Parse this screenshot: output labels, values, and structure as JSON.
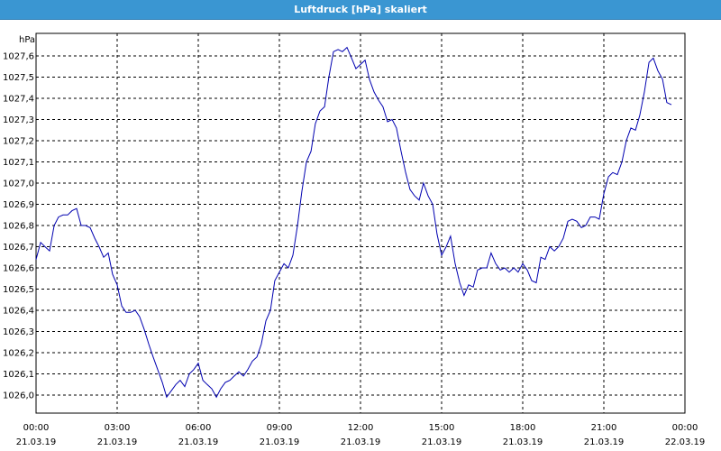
{
  "window": {
    "title": "Luftdruck [hPa] skaliert"
  },
  "colors": {
    "title_bar": "#3a96d2",
    "line": "#0000b0",
    "grid": "#000000"
  },
  "chart_data": {
    "type": "line",
    "title": "Luftdruck [hPa] skaliert",
    "ylabel": "hPa",
    "xlabel": "",
    "grid": true,
    "ylim": [
      1025.9,
      1027.7
    ],
    "xlim": [
      0,
      24
    ],
    "y_ticks": [
      "1026,0",
      "1026,1",
      "1026,2",
      "1026,3",
      "1026,4",
      "1026,5",
      "1026,6",
      "1026,7",
      "1026,8",
      "1026,9",
      "1027,0",
      "1027,1",
      "1027,2",
      "1027,3",
      "1027,4",
      "1027,5",
      "1027,6"
    ],
    "x_ticks": [
      {
        "time": "00:00",
        "date": "21.03.19"
      },
      {
        "time": "03:00",
        "date": "21.03.19"
      },
      {
        "time": "06:00",
        "date": "21.03.19"
      },
      {
        "time": "09:00",
        "date": "21.03.19"
      },
      {
        "time": "12:00",
        "date": "21.03.19"
      },
      {
        "time": "15:00",
        "date": "21.03.19"
      },
      {
        "time": "18:00",
        "date": "21.03.19"
      },
      {
        "time": "21:00",
        "date": "21.03.19"
      },
      {
        "time": "00:00",
        "date": "22.03.19"
      }
    ],
    "series": [
      {
        "values": [
          [
            0.0,
            1026.64
          ],
          [
            0.17,
            1026.72
          ],
          [
            0.33,
            1026.7
          ],
          [
            0.5,
            1026.68
          ],
          [
            0.67,
            1026.8
          ],
          [
            0.83,
            1026.84
          ],
          [
            1.0,
            1026.85
          ],
          [
            1.17,
            1026.85
          ],
          [
            1.33,
            1026.87
          ],
          [
            1.5,
            1026.88
          ],
          [
            1.67,
            1026.8
          ],
          [
            1.83,
            1026.8
          ],
          [
            2.0,
            1026.79
          ],
          [
            2.17,
            1026.74
          ],
          [
            2.33,
            1026.7
          ],
          [
            2.5,
            1026.65
          ],
          [
            2.67,
            1026.67
          ],
          [
            2.83,
            1026.57
          ],
          [
            3.0,
            1026.52
          ],
          [
            3.17,
            1026.42
          ],
          [
            3.33,
            1026.39
          ],
          [
            3.5,
            1026.39
          ],
          [
            3.67,
            1026.4
          ],
          [
            3.83,
            1026.37
          ],
          [
            4.0,
            1026.31
          ],
          [
            4.17,
            1026.24
          ],
          [
            4.33,
            1026.18
          ],
          [
            4.5,
            1026.12
          ],
          [
            4.67,
            1026.06
          ],
          [
            4.83,
            1025.99
          ],
          [
            5.0,
            1026.02
          ],
          [
            5.17,
            1026.05
          ],
          [
            5.33,
            1026.07
          ],
          [
            5.5,
            1026.04
          ],
          [
            5.67,
            1026.1
          ],
          [
            5.83,
            1026.12
          ],
          [
            6.0,
            1026.15
          ],
          [
            6.17,
            1026.07
          ],
          [
            6.33,
            1026.05
          ],
          [
            6.5,
            1026.03
          ],
          [
            6.67,
            1025.99
          ],
          [
            6.83,
            1026.03
          ],
          [
            7.0,
            1026.06
          ],
          [
            7.17,
            1026.07
          ],
          [
            7.33,
            1026.09
          ],
          [
            7.5,
            1026.11
          ],
          [
            7.67,
            1026.09
          ],
          [
            7.83,
            1026.12
          ],
          [
            8.0,
            1026.16
          ],
          [
            8.17,
            1026.18
          ],
          [
            8.33,
            1026.24
          ],
          [
            8.5,
            1026.35
          ],
          [
            8.67,
            1026.4
          ],
          [
            8.83,
            1026.54
          ],
          [
            9.0,
            1026.58
          ],
          [
            9.17,
            1026.62
          ],
          [
            9.33,
            1026.6
          ],
          [
            9.5,
            1026.66
          ],
          [
            9.67,
            1026.8
          ],
          [
            9.83,
            1026.96
          ],
          [
            10.0,
            1027.1
          ],
          [
            10.17,
            1027.15
          ],
          [
            10.33,
            1027.28
          ],
          [
            10.5,
            1027.34
          ],
          [
            10.67,
            1027.36
          ],
          [
            10.83,
            1027.5
          ],
          [
            11.0,
            1027.62
          ],
          [
            11.17,
            1027.63
          ],
          [
            11.33,
            1027.62
          ],
          [
            11.5,
            1027.64
          ],
          [
            11.67,
            1027.59
          ],
          [
            11.83,
            1027.54
          ],
          [
            12.0,
            1027.56
          ],
          [
            12.17,
            1027.58
          ],
          [
            12.33,
            1027.49
          ],
          [
            12.5,
            1027.43
          ],
          [
            12.67,
            1027.39
          ],
          [
            12.83,
            1027.36
          ],
          [
            13.0,
            1027.29
          ],
          [
            13.17,
            1027.3
          ],
          [
            13.33,
            1027.26
          ],
          [
            13.5,
            1027.15
          ],
          [
            13.67,
            1027.05
          ],
          [
            13.83,
            1026.97
          ],
          [
            14.0,
            1026.94
          ],
          [
            14.17,
            1026.92
          ],
          [
            14.33,
            1027.0
          ],
          [
            14.5,
            1026.94
          ],
          [
            14.67,
            1026.9
          ],
          [
            14.83,
            1026.76
          ],
          [
            15.0,
            1026.66
          ],
          [
            15.17,
            1026.7
          ],
          [
            15.33,
            1026.75
          ],
          [
            15.5,
            1026.62
          ],
          [
            15.67,
            1026.53
          ],
          [
            15.83,
            1026.47
          ],
          [
            16.0,
            1026.52
          ],
          [
            16.17,
            1026.51
          ],
          [
            16.33,
            1026.59
          ],
          [
            16.5,
            1026.6
          ],
          [
            16.67,
            1026.6
          ],
          [
            16.83,
            1026.67
          ],
          [
            17.0,
            1026.62
          ],
          [
            17.17,
            1026.59
          ],
          [
            17.33,
            1026.6
          ],
          [
            17.5,
            1026.58
          ],
          [
            17.67,
            1026.6
          ],
          [
            17.83,
            1026.58
          ],
          [
            18.0,
            1026.62
          ],
          [
            18.17,
            1026.59
          ],
          [
            18.33,
            1026.54
          ],
          [
            18.5,
            1026.53
          ],
          [
            18.67,
            1026.65
          ],
          [
            18.83,
            1026.64
          ],
          [
            19.0,
            1026.7
          ],
          [
            19.17,
            1026.68
          ],
          [
            19.33,
            1026.7
          ],
          [
            19.5,
            1026.74
          ],
          [
            19.67,
            1026.82
          ],
          [
            19.83,
            1026.83
          ],
          [
            20.0,
            1026.82
          ],
          [
            20.17,
            1026.79
          ],
          [
            20.33,
            1026.8
          ],
          [
            20.5,
            1026.84
          ],
          [
            20.67,
            1026.84
          ],
          [
            20.83,
            1026.83
          ],
          [
            21.0,
            1026.95
          ],
          [
            21.17,
            1027.03
          ],
          [
            21.33,
            1027.05
          ],
          [
            21.5,
            1027.04
          ],
          [
            21.67,
            1027.1
          ],
          [
            21.83,
            1027.2
          ],
          [
            22.0,
            1027.26
          ],
          [
            22.17,
            1027.25
          ],
          [
            22.33,
            1027.32
          ],
          [
            22.5,
            1027.43
          ],
          [
            22.67,
            1027.57
          ],
          [
            22.83,
            1027.59
          ],
          [
            23.0,
            1027.53
          ],
          [
            23.17,
            1027.49
          ],
          [
            23.33,
            1027.38
          ],
          [
            23.5,
            1027.37
          ]
        ]
      }
    ]
  }
}
